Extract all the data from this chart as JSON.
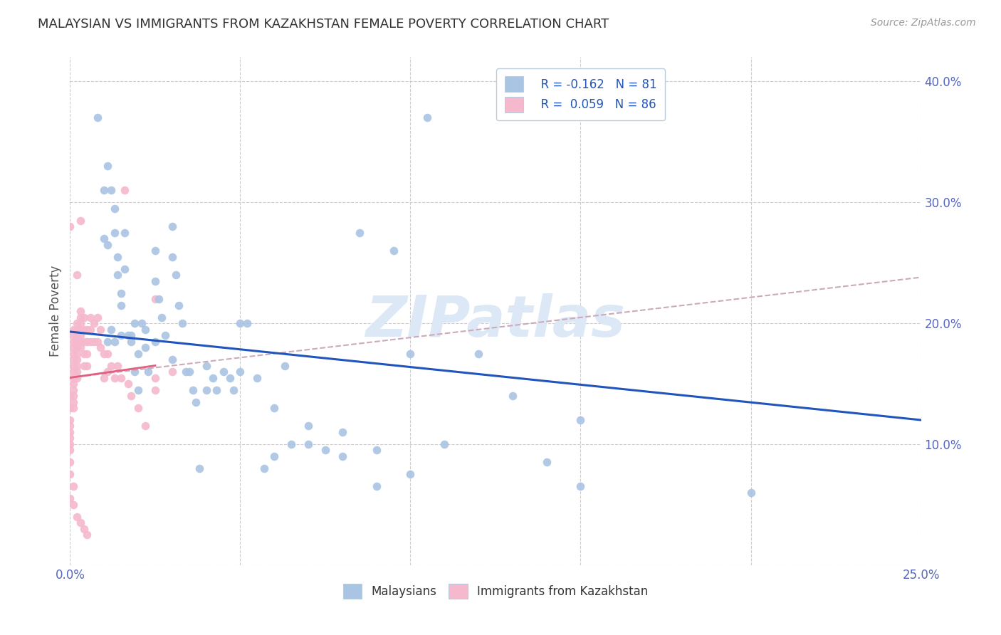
{
  "title": "MALAYSIAN VS IMMIGRANTS FROM KAZAKHSTAN FEMALE POVERTY CORRELATION CHART",
  "source": "Source: ZipAtlas.com",
  "ylabel": "Female Poverty",
  "watermark": "ZIPatlas",
  "legend_labels": [
    "Malaysians",
    "Immigrants from Kazakhstan"
  ],
  "legend_r1": "R = -0.162",
  "legend_n1": "N = 81",
  "legend_r2": "R = 0.059",
  "legend_n2": "N = 86",
  "scatter_blue": {
    "x": [
      0.008,
      0.01,
      0.01,
      0.011,
      0.011,
      0.012,
      0.012,
      0.013,
      0.013,
      0.014,
      0.014,
      0.015,
      0.015,
      0.016,
      0.016,
      0.017,
      0.018,
      0.018,
      0.019,
      0.019,
      0.02,
      0.021,
      0.022,
      0.022,
      0.023,
      0.025,
      0.025,
      0.026,
      0.027,
      0.028,
      0.03,
      0.03,
      0.031,
      0.032,
      0.033,
      0.034,
      0.035,
      0.036,
      0.037,
      0.038,
      0.04,
      0.042,
      0.043,
      0.045,
      0.047,
      0.048,
      0.05,
      0.052,
      0.055,
      0.057,
      0.06,
      0.063,
      0.065,
      0.07,
      0.075,
      0.08,
      0.085,
      0.09,
      0.095,
      0.1,
      0.105,
      0.11,
      0.12,
      0.13,
      0.14,
      0.15,
      0.2,
      0.011,
      0.013,
      0.015,
      0.02,
      0.025,
      0.03,
      0.04,
      0.05,
      0.06,
      0.07,
      0.08,
      0.09,
      0.1,
      0.15
    ],
    "y": [
      0.37,
      0.31,
      0.27,
      0.33,
      0.265,
      0.31,
      0.195,
      0.295,
      0.275,
      0.255,
      0.24,
      0.225,
      0.19,
      0.275,
      0.245,
      0.19,
      0.185,
      0.19,
      0.2,
      0.16,
      0.145,
      0.2,
      0.195,
      0.18,
      0.16,
      0.26,
      0.235,
      0.22,
      0.205,
      0.19,
      0.28,
      0.255,
      0.24,
      0.215,
      0.2,
      0.16,
      0.16,
      0.145,
      0.135,
      0.08,
      0.165,
      0.155,
      0.145,
      0.16,
      0.155,
      0.145,
      0.2,
      0.2,
      0.155,
      0.08,
      0.09,
      0.165,
      0.1,
      0.1,
      0.095,
      0.09,
      0.275,
      0.095,
      0.26,
      0.175,
      0.37,
      0.1,
      0.175,
      0.14,
      0.085,
      0.12,
      0.06,
      0.185,
      0.185,
      0.215,
      0.175,
      0.185,
      0.17,
      0.145,
      0.16,
      0.13,
      0.115,
      0.11,
      0.065,
      0.075,
      0.065
    ]
  },
  "scatter_pink": {
    "x": [
      0.0,
      0.0,
      0.0,
      0.0,
      0.0,
      0.0,
      0.0,
      0.0,
      0.0,
      0.0,
      0.001,
      0.001,
      0.001,
      0.001,
      0.001,
      0.001,
      0.001,
      0.001,
      0.001,
      0.001,
      0.001,
      0.001,
      0.001,
      0.001,
      0.002,
      0.002,
      0.002,
      0.002,
      0.002,
      0.002,
      0.002,
      0.002,
      0.002,
      0.002,
      0.003,
      0.003,
      0.003,
      0.003,
      0.003,
      0.003,
      0.003,
      0.004,
      0.004,
      0.004,
      0.004,
      0.004,
      0.005,
      0.005,
      0.005,
      0.005,
      0.006,
      0.006,
      0.006,
      0.007,
      0.007,
      0.008,
      0.008,
      0.009,
      0.009,
      0.01,
      0.01,
      0.011,
      0.011,
      0.012,
      0.013,
      0.014,
      0.015,
      0.016,
      0.017,
      0.018,
      0.02,
      0.022,
      0.025,
      0.025,
      0.025,
      0.03,
      0.003,
      0.002,
      0.001,
      0.0,
      0.0,
      0.001,
      0.002,
      0.003,
      0.004,
      0.005
    ],
    "y": [
      0.14,
      0.13,
      0.12,
      0.115,
      0.11,
      0.105,
      0.1,
      0.095,
      0.085,
      0.075,
      0.195,
      0.19,
      0.185,
      0.18,
      0.175,
      0.17,
      0.165,
      0.16,
      0.155,
      0.15,
      0.145,
      0.14,
      0.135,
      0.13,
      0.2,
      0.195,
      0.19,
      0.185,
      0.18,
      0.175,
      0.17,
      0.165,
      0.16,
      0.155,
      0.21,
      0.205,
      0.2,
      0.195,
      0.19,
      0.185,
      0.18,
      0.205,
      0.195,
      0.185,
      0.175,
      0.165,
      0.195,
      0.185,
      0.175,
      0.165,
      0.205,
      0.195,
      0.185,
      0.2,
      0.185,
      0.205,
      0.185,
      0.195,
      0.18,
      0.175,
      0.155,
      0.175,
      0.16,
      0.165,
      0.155,
      0.165,
      0.155,
      0.31,
      0.15,
      0.14,
      0.13,
      0.115,
      0.22,
      0.155,
      0.145,
      0.16,
      0.285,
      0.24,
      0.065,
      0.28,
      0.055,
      0.05,
      0.04,
      0.035,
      0.03,
      0.025
    ]
  },
  "blue_line": {
    "x0": 0.0,
    "x1": 0.25,
    "y0": 0.193,
    "y1": 0.12
  },
  "pink_line_solid": {
    "x0": 0.0,
    "x1": 0.025,
    "y0": 0.155,
    "y1": 0.165
  },
  "pink_line_dashed": {
    "x0": 0.0,
    "x1": 0.25,
    "y0": 0.155,
    "y1": 0.238
  },
  "xlim": [
    0.0,
    0.25
  ],
  "ylim": [
    0.0,
    0.42
  ],
  "xticks": [
    0.0,
    0.05,
    0.1,
    0.15,
    0.2,
    0.25
  ],
  "xtick_labels": [
    "0.0%",
    "",
    "",
    "",
    "",
    "25.0%"
  ],
  "yticks": [
    0.0,
    0.1,
    0.2,
    0.3,
    0.4
  ],
  "ytick_labels": [
    "",
    "10.0%",
    "20.0%",
    "30.0%",
    "40.0%"
  ],
  "blue_color": "#aac4e4",
  "pink_color": "#f5b8cc",
  "blue_line_color": "#2255bb",
  "pink_line_solid_color": "#e06080",
  "pink_line_dashed_color": "#ccaabb",
  "background_color": "#ffffff",
  "grid_color": "#cccccc",
  "title_color": "#333333",
  "axis_label_color": "#5566bb",
  "source_color": "#999999",
  "watermark_color": "#dce8f5",
  "ylabel_color": "#555555",
  "legend_r_color": "#2255bb",
  "legend_text_color": "#333333",
  "legend_edge_color": "#bbccdd"
}
